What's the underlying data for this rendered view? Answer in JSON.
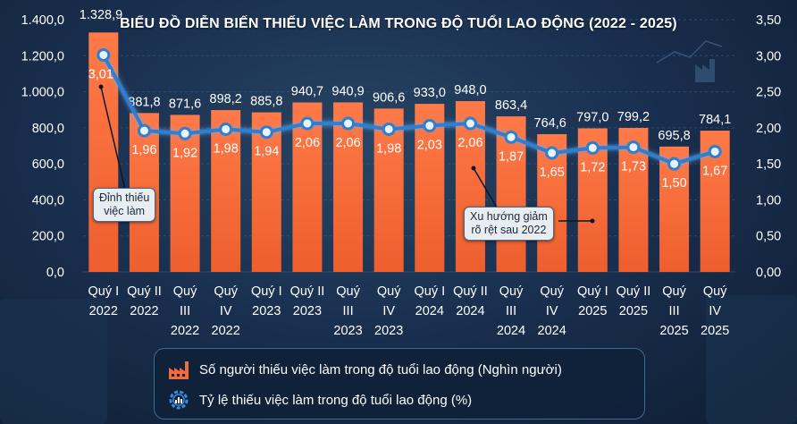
{
  "chart_data": {
    "type": "bar+line",
    "title": "BIỂU ĐỒ DIỄN BIẾN THIẾU VIỆC LÀM TRONG ĐỘ TUỔI LAO ĐỘNG (2022 - 2025)",
    "categories": [
      [
        "Quý I",
        "2022"
      ],
      [
        "Quý II",
        "2022"
      ],
      [
        "Quý",
        "III",
        "2022"
      ],
      [
        "Quý",
        "IV",
        "2022"
      ],
      [
        "Quý I",
        "2023"
      ],
      [
        "Quý II",
        "2023"
      ],
      [
        "Quý",
        "III",
        "2023"
      ],
      [
        "Quý",
        "IV",
        "2023"
      ],
      [
        "Quý I",
        "2024"
      ],
      [
        "Quý II",
        "2024"
      ],
      [
        "Quý",
        "III",
        "2024"
      ],
      [
        "Quý",
        "IV",
        "2024"
      ],
      [
        "Quý I",
        "2025"
      ],
      [
        "Quý II",
        "2025"
      ],
      [
        "Quý",
        "III",
        "2025"
      ],
      [
        "Quý",
        "IV",
        "2025"
      ]
    ],
    "bar_series": {
      "name": "Số người thiếu việc làm trong độ tuổi lao động (Nghìn người)",
      "values": [
        1328.9,
        881.8,
        871.6,
        898.2,
        885.8,
        940.7,
        940.9,
        906.6,
        933.0,
        948.0,
        863.4,
        764.6,
        797.0,
        799.2,
        695.8,
        784.1
      ],
      "labels": [
        "1.328,9",
        "881,8",
        "871,6",
        "898,2",
        "885,8",
        "940,7",
        "940,9",
        "906,6",
        "933,0",
        "948,0",
        "863,4",
        "764,6",
        "797,0",
        "799,2",
        "695,8",
        "784,1"
      ],
      "color": "#f26b3a"
    },
    "line_series": {
      "name": "Tỷ lệ thiếu việc làm trong độ tuổi lao động (%)",
      "values": [
        3.01,
        1.96,
        1.92,
        1.98,
        1.94,
        2.06,
        2.06,
        1.98,
        2.03,
        2.06,
        1.87,
        1.65,
        1.72,
        1.73,
        1.5,
        1.67
      ],
      "labels": [
        "3,01",
        "1,96",
        "1,92",
        "1,98",
        "1,94",
        "2,06",
        "2,06",
        "1,98",
        "2,03",
        "2,06",
        "1,87",
        "1,65",
        "1,72",
        "1,73",
        "1,50",
        "1,67"
      ],
      "color": "#3d8bd8"
    },
    "y_left": {
      "min": 0,
      "max": 1400,
      "ticks": [
        "0,0",
        "200,0",
        "400,0",
        "600,0",
        "800,0",
        "1.000,0",
        "1.200,0",
        "1.400,0"
      ]
    },
    "y_right": {
      "min": 0,
      "max": 3.5,
      "ticks": [
        "0,00",
        "0,50",
        "1,00",
        "1,50",
        "2,00",
        "2,50",
        "3,00",
        "3,50"
      ]
    },
    "annotations": [
      {
        "lines": [
          "Đỉnh thiếu",
          "việc làm"
        ],
        "target_index": 0
      },
      {
        "lines": [
          "Xu hướng giảm",
          "rõ rệt sau 2022"
        ],
        "target_index": 10
      }
    ]
  },
  "legend": {
    "bar_label": "Số người thiếu việc làm trong độ tuổi lao động (Nghìn người)",
    "line_label": "Tỷ lệ thiếu việc làm trong độ tuổi lao động (%)",
    "bar_icon": "factory-icon",
    "line_icon": "gear-chart-icon"
  }
}
